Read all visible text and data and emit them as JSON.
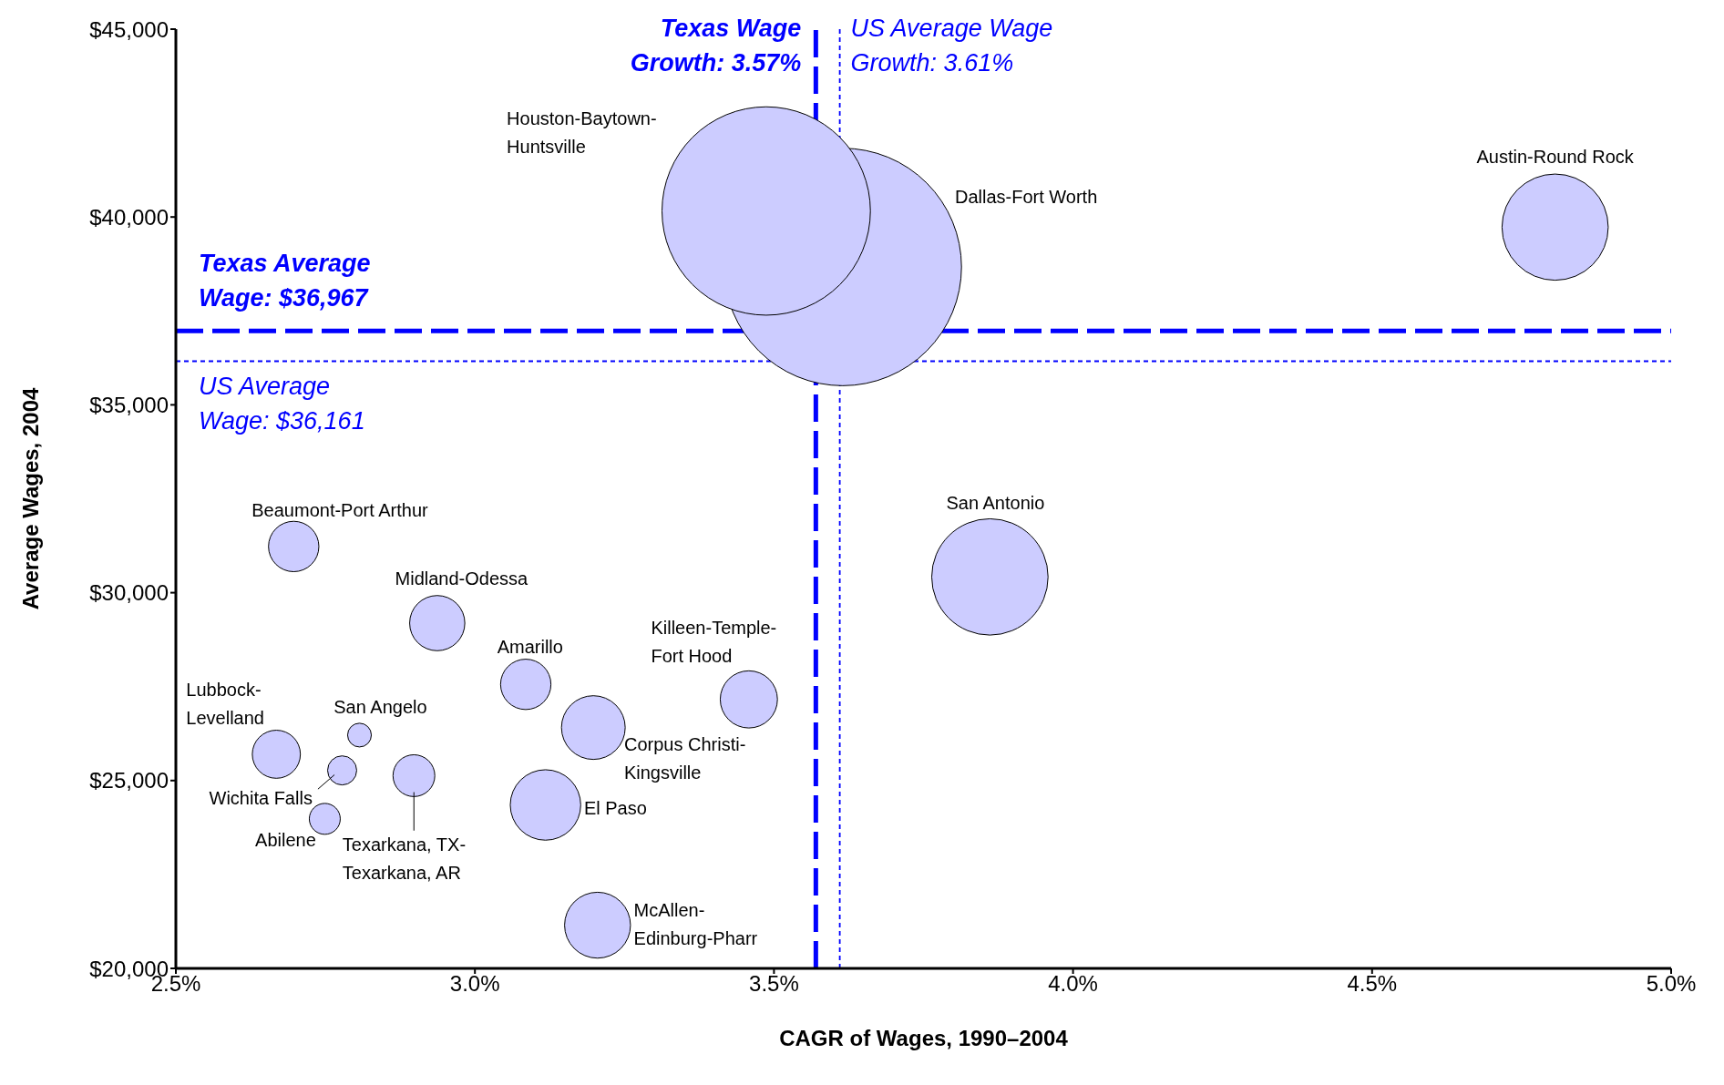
{
  "chart_data": {
    "type": "bubble",
    "xlabel": "CAGR of Wages, 1990–2004",
    "ylabel": "Average Wages, 2004",
    "x": [
      3.615,
      3.487,
      4.806,
      3.861,
      2.697,
      2.937,
      3.085,
      3.458,
      3.198,
      2.668,
      2.807,
      2.778,
      2.898,
      2.749,
      3.118,
      3.205
    ],
    "values": [
      38670,
      40160,
      39730,
      30420,
      31230,
      29190,
      27560,
      27160,
      26410,
      25700,
      26210,
      25270,
      25130,
      23980,
      24350,
      21150
    ],
    "sizes": [
      1,
      0.77,
      0.2,
      0.24,
      0.045,
      0.054,
      0.045,
      0.058,
      0.072,
      0.041,
      0.01,
      0.015,
      0.031,
      0.017,
      0.088,
      0.077
    ],
    "color": "#ccccff",
    "annotations": [
      "Dallas-Fort Worth",
      "Houston-Baytown-\nHuntsville",
      "Austin-Round Rock",
      "San Antonio",
      "Beaumont-Port Arthur",
      "Midland-Odessa",
      "Amarillo",
      "Killeen-Temple-\nFort Hood",
      "Corpus Christi-\nKingsville",
      "Lubbock-\nLevelland",
      "San Angelo",
      "Wichita Falls",
      "Texarkana, TX-\nTexarkana, AR",
      "Abilene",
      "El Paso",
      "McAllen-\nEdinburg-Pharr"
    ],
    "ref_lines": [
      {
        "axis": "y",
        "value": 36967,
        "label": "Texas Average\nWage: $36,967",
        "color": "#0000ff",
        "line_style": "dashed"
      },
      {
        "axis": "y",
        "value": 36161,
        "label": "US Average\nWage: $36,161",
        "color": "#0000ff",
        "line_style": "dotted"
      },
      {
        "axis": "x",
        "value": 3.57,
        "label": "Texas Wage\nGrowth: 3.57%",
        "color": "#0000ff",
        "line_style": "dashed"
      },
      {
        "axis": "x",
        "value": 3.61,
        "label": "US Average Wage\nGrowth: 3.61%",
        "color": "#0000ff",
        "line_style": "dotted"
      }
    ],
    "xlim": [
      2.5,
      5.0
    ],
    "xticks": [
      {
        "value": 2.5,
        "label": "2.5%"
      },
      {
        "value": 3.0,
        "label": "3.0%"
      },
      {
        "value": 3.5,
        "label": "3.5%"
      },
      {
        "value": 4.0,
        "label": "4.0%"
      },
      {
        "value": 4.5,
        "label": "4.5%"
      },
      {
        "value": 5.0,
        "label": "5.0%"
      }
    ],
    "ylim": [
      20000,
      45000
    ],
    "yticks": [
      {
        "value": 20000,
        "label": "$20,000"
      },
      {
        "value": 25000,
        "label": "$25,000"
      },
      {
        "value": 30000,
        "label": "$30,000"
      },
      {
        "value": 35000,
        "label": "$35,000"
      },
      {
        "value": 40000,
        "label": "$40,000"
      },
      {
        "value": 45000,
        "label": "$45,000"
      }
    ],
    "grid": false,
    "legend": false
  }
}
